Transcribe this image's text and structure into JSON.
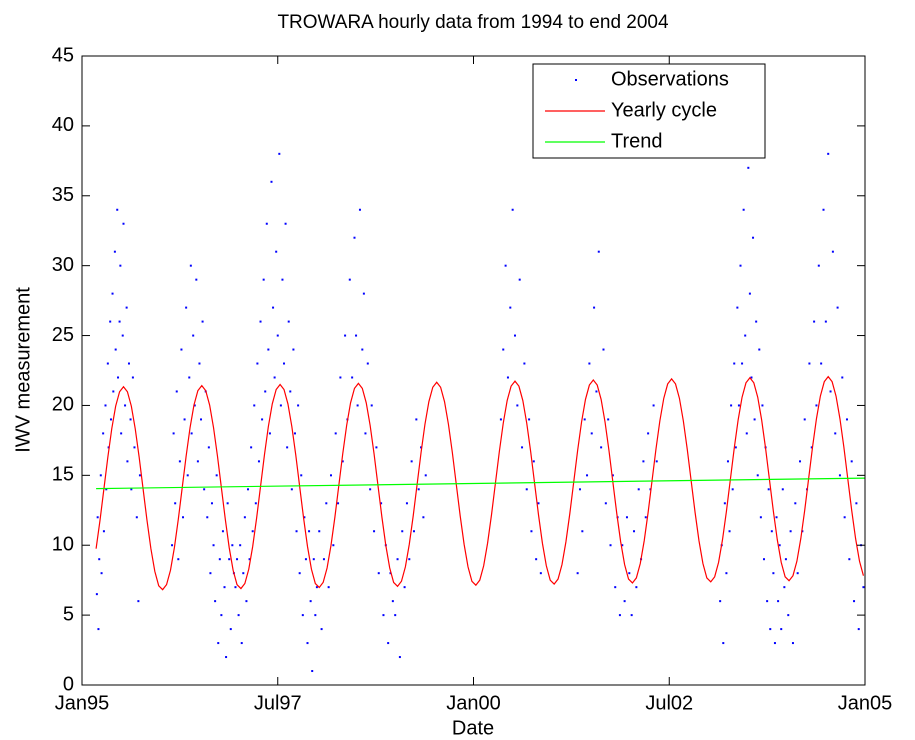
{
  "chart_data": {
    "type": "line",
    "title": "TROWARA hourly data from 1994 to end 2004",
    "x_label": "Date",
    "y_label": "IWV measurement",
    "xlim": [
      1995,
      2005
    ],
    "ylim": [
      0,
      45
    ],
    "xticks": [
      {
        "value": 1995,
        "label": "Jan95"
      },
      {
        "value": 1997.5,
        "label": "Jul97"
      },
      {
        "value": 2000,
        "label": "Jan00"
      },
      {
        "value": 2002.5,
        "label": "Jul02"
      },
      {
        "value": 2005,
        "label": "Jan05"
      }
    ],
    "yticks": [
      0,
      5,
      10,
      15,
      20,
      25,
      30,
      35,
      40,
      45
    ],
    "legend": "northeast",
    "series": [
      {
        "name": "Observations",
        "color": "#0000ff",
        "style": "points",
        "x": [
          1995.19,
          1995.2,
          1995.21,
          1995.22,
          1995.24,
          1995.25,
          1995.27,
          1995.28,
          1995.3,
          1995.31,
          1995.33,
          1995.34,
          1995.36,
          1995.37,
          1995.39,
          1995.4,
          1995.42,
          1995.43,
          1995.45,
          1995.46,
          1995.48,
          1995.49,
          1995.5,
          1995.52,
          1995.53,
          1995.55,
          1995.57,
          1995.58,
          1995.6,
          1995.62,
          1995.63,
          1995.65,
          1995.67,
          1995.7,
          1995.72,
          1995.74,
          1996.15,
          1996.17,
          1996.19,
          1996.21,
          1996.23,
          1996.25,
          1996.27,
          1996.29,
          1996.31,
          1996.33,
          1996.35,
          1996.37,
          1996.39,
          1996.4,
          1996.42,
          1996.44,
          1996.46,
          1996.48,
          1996.5,
          1996.52,
          1996.54,
          1996.56,
          1996.58,
          1996.6,
          1996.62,
          1996.64,
          1996.66,
          1996.68,
          1996.7,
          1996.72,
          1996.74,
          1996.76,
          1996.78,
          1996.8,
          1996.82,
          1996.84,
          1996.86,
          1996.88,
          1996.9,
          1996.92,
          1996.94,
          1996.96,
          1996.98,
          1997,
          1997.02,
          1997.04,
          1997.06,
          1997.08,
          1997.1,
          1997.12,
          1997.14,
          1997.16,
          1997.18,
          1997.2,
          1997.22,
          1997.24,
          1997.26,
          1997.28,
          1997.3,
          1997.32,
          1997.34,
          1997.36,
          1997.38,
          1997.4,
          1997.42,
          1997.44,
          1997.46,
          1997.48,
          1997.5,
          1997.52,
          1997.54,
          1997.56,
          1997.58,
          1997.6,
          1997.62,
          1997.64,
          1997.66,
          1997.68,
          1997.7,
          1997.72,
          1997.74,
          1997.76,
          1997.78,
          1997.8,
          1997.82,
          1997.84,
          1997.86,
          1997.88,
          1997.9,
          1997.92,
          1997.94,
          1997.96,
          1997.98,
          1998,
          1998.03,
          1998.06,
          1998.09,
          1998.12,
          1998.15,
          1998.18,
          1998.21,
          1998.24,
          1998.27,
          1998.3,
          1998.33,
          1998.36,
          1998.39,
          1998.42,
          1998.45,
          1998.48,
          1998.5,
          1998.52,
          1998.55,
          1998.58,
          1998.6,
          1998.62,
          1998.65,
          1998.68,
          1998.7,
          1998.73,
          1998.76,
          1998.79,
          1998.82,
          1998.85,
          1998.88,
          1998.91,
          1998.94,
          1998.97,
          1999,
          1999.03,
          1999.06,
          1999.09,
          1999.12,
          1999.15,
          1999.18,
          1999.21,
          1999.24,
          1999.27,
          1999.3,
          1999.33,
          1999.36,
          1999.39,
          2000.35,
          2000.38,
          2000.41,
          2000.44,
          2000.47,
          2000.5,
          2000.53,
          2000.56,
          2000.59,
          2000.62,
          2000.65,
          2000.68,
          2000.71,
          2000.74,
          2000.77,
          2000.8,
          2000.83,
          2000.86,
          2001.33,
          2001.36,
          2001.39,
          2001.42,
          2001.45,
          2001.48,
          2001.51,
          2001.54,
          2001.57,
          2001.6,
          2001.63,
          2001.66,
          2001.69,
          2001.72,
          2001.75,
          2001.78,
          2001.81,
          2001.84,
          2001.87,
          2001.9,
          2001.93,
          2001.96,
          2001.99,
          2002.02,
          2002.05,
          2002.08,
          2002.11,
          2002.14,
          2002.17,
          2002.2,
          2002.23,
          2002.26,
          2002.3,
          2002.34,
          2003.15,
          2003.17,
          2003.19,
          2003.21,
          2003.23,
          2003.25,
          2003.27,
          2003.29,
          2003.31,
          2003.33,
          2003.35,
          2003.37,
          2003.39,
          2003.41,
          2003.43,
          2003.45,
          2003.47,
          2003.49,
          2003.51,
          2003.53,
          2003.55,
          2003.57,
          2003.59,
          2003.61,
          2003.63,
          2003.65,
          2003.67,
          2003.69,
          2003.71,
          2003.73,
          2003.75,
          2003.77,
          2003.79,
          2003.81,
          2003.83,
          2003.85,
          2003.87,
          2003.89,
          2003.91,
          2003.93,
          2003.95,
          2003.97,
          2003.99,
          2004.02,
          2004.05,
          2004.08,
          2004.11,
          2004.14,
          2004.17,
          2004.2,
          2004.23,
          2004.26,
          2004.29,
          2004.32,
          2004.35,
          2004.38,
          2004.41,
          2004.44,
          2004.47,
          2004.5,
          2004.53,
          2004.56,
          2004.59,
          2004.62,
          2004.65,
          2004.68,
          2004.71,
          2004.74,
          2004.77,
          2004.8,
          2004.83,
          2004.86,
          2004.89,
          2004.92,
          2004.95,
          2004.98
        ],
        "values": [
          6.5,
          12,
          4,
          9,
          15,
          8,
          18,
          11,
          20,
          14,
          23,
          17,
          26,
          19,
          28,
          21,
          31,
          24,
          34,
          22,
          26,
          30,
          18,
          25,
          33,
          20,
          27,
          16,
          23,
          19,
          14,
          22,
          17,
          12,
          6,
          15,
          10,
          18,
          13,
          21,
          9,
          16,
          24,
          12,
          19,
          27,
          15,
          22,
          30,
          18,
          25,
          20,
          29,
          16,
          23,
          19,
          26,
          14,
          21,
          12,
          17,
          8,
          13,
          10,
          6,
          15,
          3,
          9,
          5,
          11,
          7,
          2,
          13,
          9,
          4,
          10,
          8,
          7,
          9,
          5,
          10,
          3,
          8,
          12,
          6,
          14,
          9,
          17,
          11,
          20,
          13,
          23,
          16,
          26,
          19,
          29,
          21,
          33,
          24,
          18,
          36,
          27,
          22,
          31,
          25,
          38,
          20,
          29,
          23,
          33,
          17,
          26,
          21,
          14,
          24,
          18,
          11,
          20,
          8,
          15,
          5,
          12,
          9,
          3,
          11,
          6,
          1,
          9,
          5,
          7,
          11,
          4,
          9,
          13,
          7,
          15,
          10,
          18,
          13,
          22,
          16,
          25,
          19,
          29,
          22,
          32,
          25,
          20,
          34,
          24,
          28,
          18,
          23,
          14,
          20,
          11,
          17,
          8,
          13,
          5,
          10,
          3,
          8,
          6,
          5,
          9,
          2,
          11,
          7,
          13,
          9,
          16,
          11,
          19,
          14,
          17,
          12,
          15,
          19,
          24,
          30,
          22,
          27,
          34,
          25,
          20,
          29,
          17,
          23,
          14,
          19,
          11,
          16,
          9,
          13,
          8,
          8,
          14,
          11,
          19,
          15,
          23,
          18,
          27,
          21,
          31,
          17,
          24,
          13,
          19,
          10,
          15,
          7,
          12,
          5,
          10,
          6,
          12,
          8,
          5,
          11,
          7,
          14,
          9,
          16,
          12,
          18,
          14,
          20,
          16,
          6,
          10,
          3,
          13,
          8,
          16,
          11,
          20,
          14,
          23,
          17,
          27,
          20,
          30,
          23,
          34,
          25,
          18,
          37,
          28,
          22,
          32,
          19,
          26,
          15,
          24,
          12,
          20,
          9,
          17,
          6,
          14,
          4,
          11,
          8,
          3,
          12,
          6,
          10,
          4,
          14,
          7,
          9,
          5,
          11,
          3,
          13,
          8,
          16,
          11,
          19,
          14,
          23,
          17,
          26,
          20,
          30,
          23,
          34,
          26,
          38,
          21,
          31,
          18,
          27,
          15,
          22,
          12,
          19,
          9,
          16,
          6,
          13,
          4,
          10,
          7
        ]
      },
      {
        "name": "Yearly cycle",
        "color": "#ff0000",
        "style": "line",
        "x": [
          1995.18,
          1995.23,
          1995.28,
          1995.33,
          1995.38,
          1995.43,
          1995.48,
          1995.53,
          1995.58,
          1995.63,
          1995.68,
          1995.73,
          1995.78,
          1995.83,
          1995.88,
          1995.93,
          1995.98,
          1996.03,
          1996.08,
          1996.13,
          1996.18,
          1996.23,
          1996.28,
          1996.33,
          1996.38,
          1996.43,
          1996.48,
          1996.53,
          1996.58,
          1996.63,
          1996.68,
          1996.73,
          1996.78,
          1996.83,
          1996.88,
          1996.93,
          1996.98,
          1997.03,
          1997.08,
          1997.13,
          1997.18,
          1997.23,
          1997.28,
          1997.33,
          1997.38,
          1997.43,
          1997.48,
          1997.53,
          1997.58,
          1997.63,
          1997.68,
          1997.73,
          1997.78,
          1997.83,
          1997.88,
          1997.93,
          1997.98,
          1998.03,
          1998.08,
          1998.13,
          1998.18,
          1998.23,
          1998.28,
          1998.33,
          1998.38,
          1998.43,
          1998.48,
          1998.53,
          1998.58,
          1998.63,
          1998.68,
          1998.73,
          1998.78,
          1998.83,
          1998.88,
          1998.93,
          1998.98,
          1999.03,
          1999.08,
          1999.13,
          1999.18,
          1999.23,
          1999.28,
          1999.33,
          1999.38,
          1999.43,
          1999.48,
          1999.53,
          1999.58,
          1999.63,
          1999.68,
          1999.73,
          1999.78,
          1999.83,
          1999.88,
          1999.93,
          1999.98,
          2000.03,
          2000.08,
          2000.13,
          2000.18,
          2000.23,
          2000.28,
          2000.33,
          2000.38,
          2000.43,
          2000.48,
          2000.53,
          2000.58,
          2000.63,
          2000.68,
          2000.73,
          2000.78,
          2000.83,
          2000.88,
          2000.93,
          2000.98,
          2001.03,
          2001.08,
          2001.13,
          2001.18,
          2001.23,
          2001.28,
          2001.33,
          2001.38,
          2001.43,
          2001.48,
          2001.53,
          2001.58,
          2001.63,
          2001.68,
          2001.73,
          2001.78,
          2001.83,
          2001.88,
          2001.93,
          2001.98,
          2002.03,
          2002.08,
          2002.13,
          2002.18,
          2002.23,
          2002.28,
          2002.33,
          2002.38,
          2002.43,
          2002.48,
          2002.53,
          2002.58,
          2002.63,
          2002.68,
          2002.73,
          2002.78,
          2002.83,
          2002.88,
          2002.93,
          2002.98,
          2003.03,
          2003.08,
          2003.13,
          2003.18,
          2003.23,
          2003.28,
          2003.33,
          2003.38,
          2003.43,
          2003.48,
          2003.53,
          2003.58,
          2003.63,
          2003.68,
          2003.73,
          2003.78,
          2003.83,
          2003.88,
          2003.93,
          2003.98,
          2004.03,
          2004.08,
          2004.13,
          2004.18,
          2004.23,
          2004.28,
          2004.33,
          2004.38,
          2004.43,
          2004.48,
          2004.53,
          2004.58,
          2004.63,
          2004.68,
          2004.73,
          2004.78,
          2004.83,
          2004.88,
          2004.93,
          2004.98
        ],
        "values": [
          9.75,
          11.78,
          14.04,
          16.3,
          18.33,
          19.95,
          20.98,
          21.34,
          20.98,
          19.95,
          18.33,
          16.3,
          14.04,
          11.78,
          9.75,
          8.13,
          7.1,
          6.82,
          7.18,
          8.21,
          9.83,
          11.86,
          14.12,
          16.38,
          18.41,
          20.03,
          21.06,
          21.42,
          21.06,
          20.03,
          18.41,
          16.38,
          14.12,
          11.86,
          9.83,
          8.21,
          7.18,
          6.9,
          7.26,
          8.29,
          9.91,
          11.94,
          14.2,
          16.46,
          18.49,
          20.11,
          21.14,
          21.5,
          21.14,
          20.11,
          18.49,
          16.46,
          14.2,
          11.94,
          9.91,
          8.29,
          7.26,
          6.98,
          7.34,
          8.37,
          9.99,
          12.02,
          14.28,
          16.54,
          18.57,
          20.19,
          21.22,
          21.58,
          21.22,
          20.19,
          18.57,
          16.54,
          14.28,
          12.02,
          9.99,
          8.37,
          7.34,
          7.06,
          7.42,
          8.45,
          10.07,
          12.1,
          14.36,
          16.62,
          18.65,
          20.27,
          21.3,
          21.66,
          21.3,
          20.27,
          18.65,
          16.62,
          14.36,
          12.1,
          10.07,
          8.45,
          7.42,
          7.14,
          7.5,
          8.53,
          10.15,
          12.18,
          14.44,
          16.7,
          18.73,
          20.35,
          21.38,
          21.74,
          21.38,
          20.35,
          18.73,
          16.7,
          14.44,
          12.18,
          10.15,
          8.53,
          7.5,
          7.22,
          7.58,
          8.61,
          10.23,
          12.26,
          14.52,
          16.78,
          18.81,
          20.43,
          21.46,
          21.82,
          21.46,
          20.43,
          18.81,
          16.78,
          14.52,
          12.26,
          10.23,
          8.61,
          7.58,
          7.3,
          7.66,
          8.69,
          10.31,
          12.34,
          14.6,
          16.86,
          18.89,
          20.51,
          21.54,
          21.9,
          21.54,
          20.51,
          18.89,
          16.86,
          14.6,
          12.34,
          10.31,
          8.69,
          7.66,
          7.38,
          7.74,
          8.77,
          10.39,
          12.42,
          14.68,
          16.94,
          18.97,
          20.59,
          21.62,
          21.98,
          21.62,
          20.59,
          18.97,
          16.94,
          14.68,
          12.42,
          10.39,
          8.77,
          7.74,
          7.46,
          7.82,
          8.85,
          10.47,
          12.5,
          14.76,
          17.02,
          19.05,
          20.67,
          21.7,
          22.06,
          21.7,
          20.67,
          19.05,
          17.02,
          14.76,
          12.5,
          10.47,
          8.85,
          7.82
        ]
      },
      {
        "name": "Trend",
        "color": "#00ff00",
        "style": "line",
        "x": [
          1995.18,
          2005
        ],
        "values": [
          14.05,
          14.8
        ]
      }
    ]
  }
}
